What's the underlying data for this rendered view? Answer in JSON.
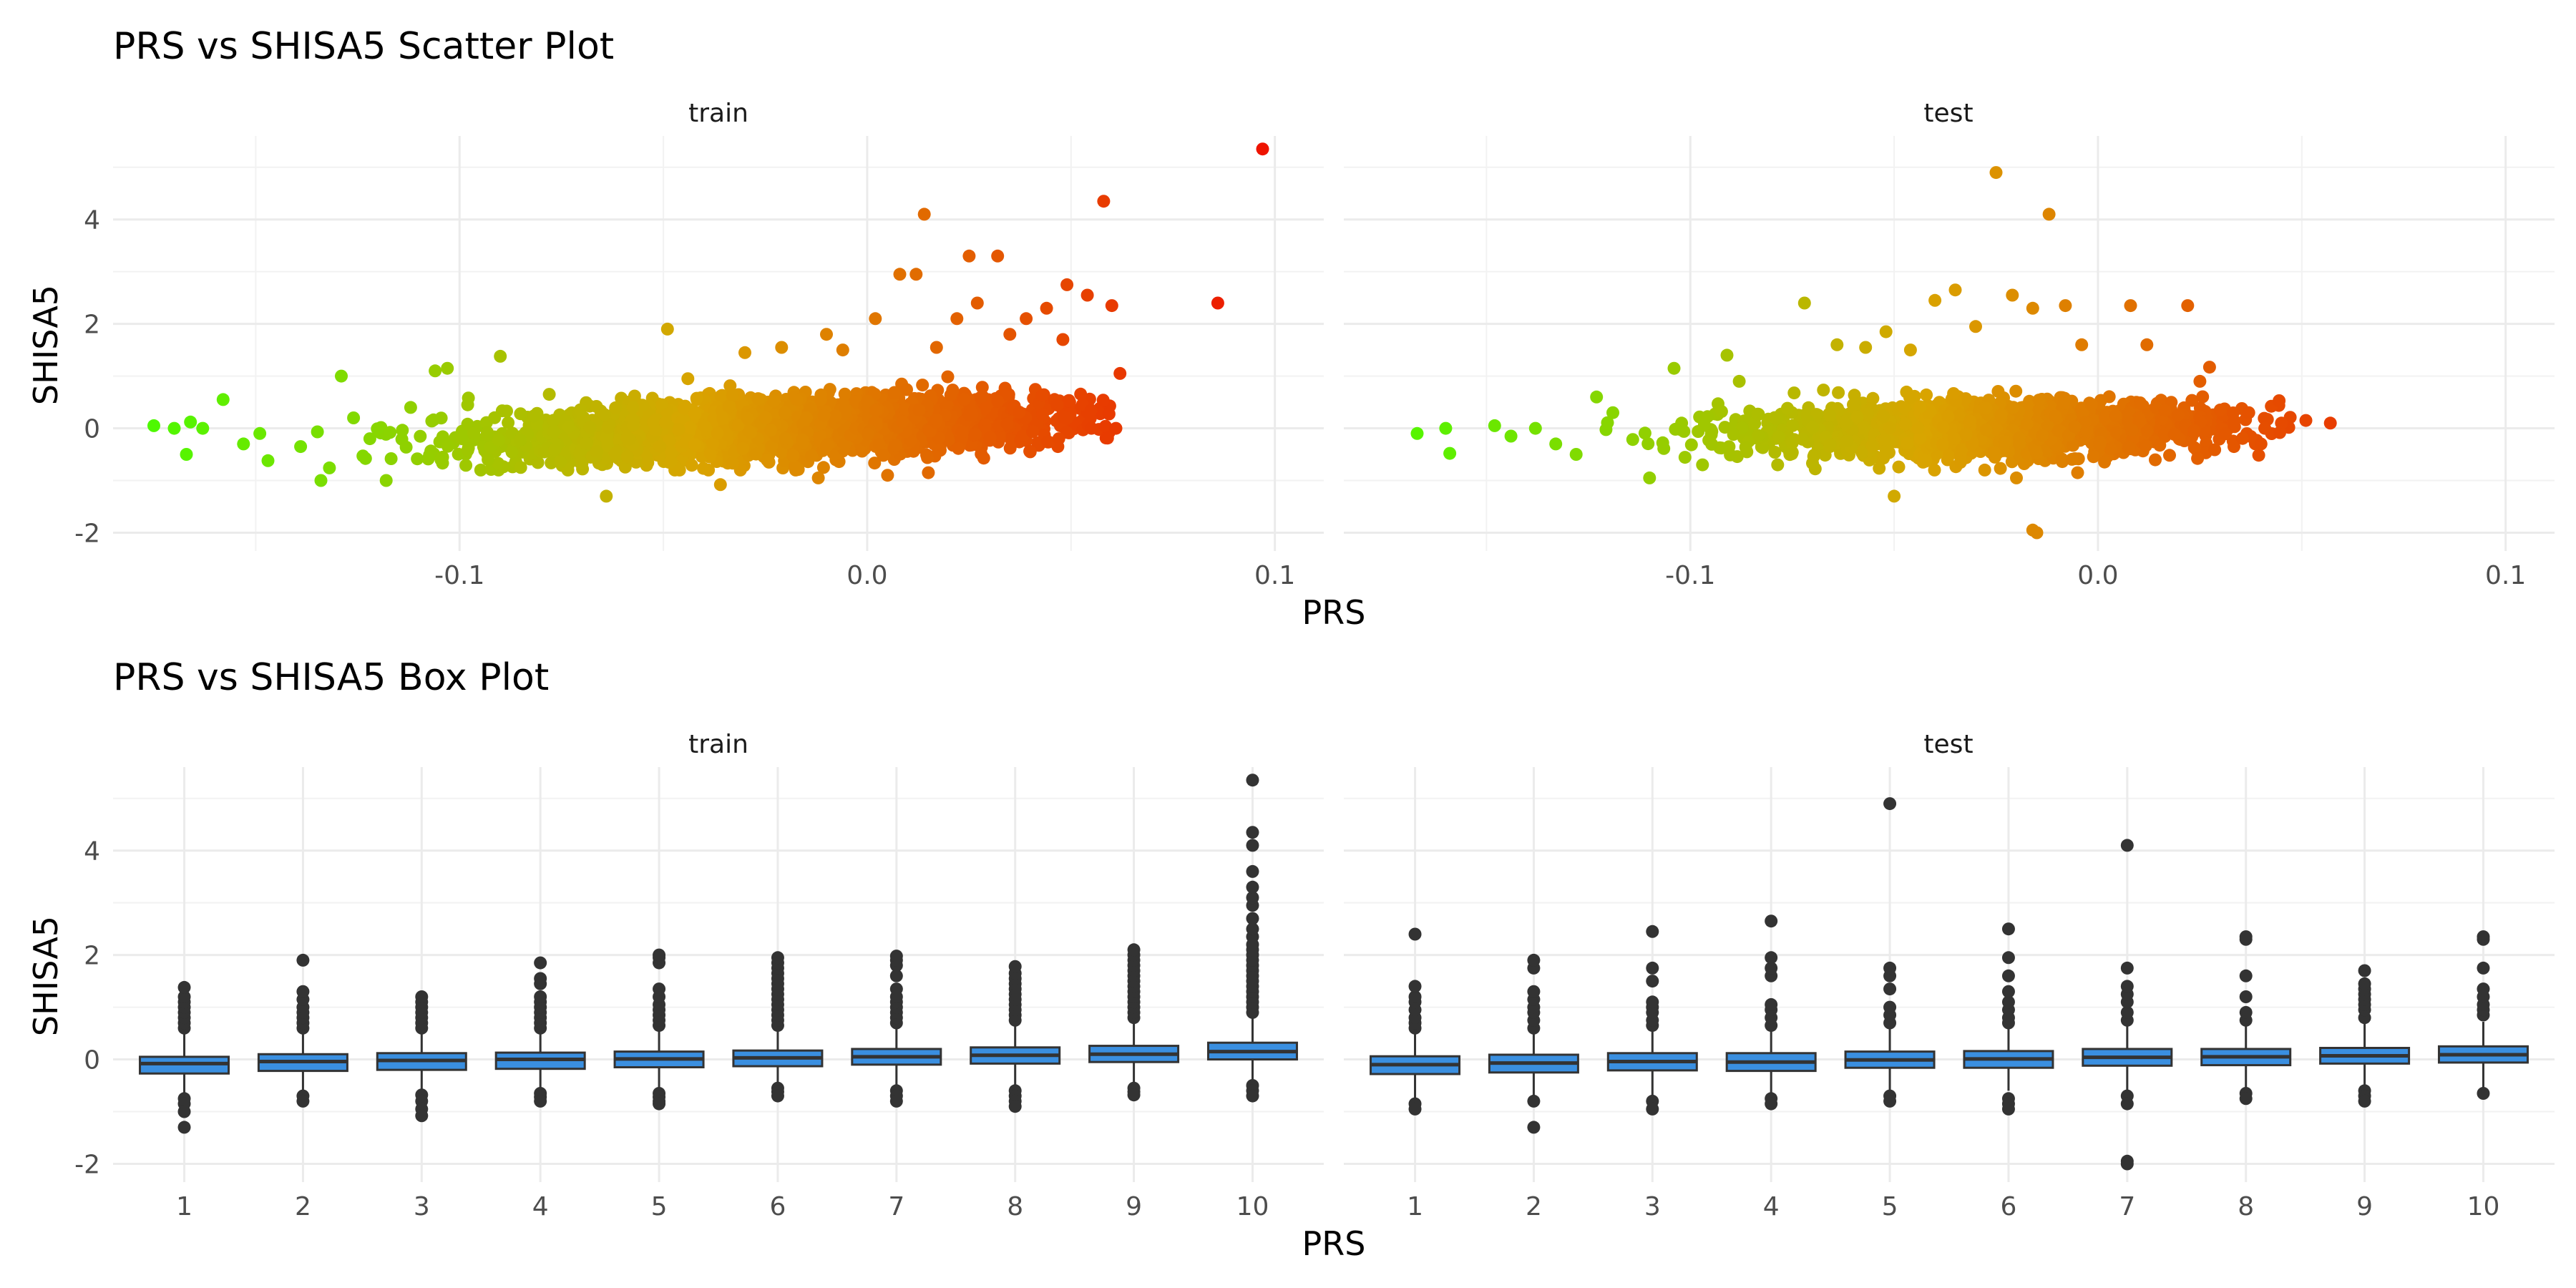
{
  "chart_data": [
    {
      "type": "scatter",
      "title": "PRS vs SHISA5 Scatter Plot",
      "xlabel": "PRS",
      "ylabel": "SHISA5",
      "facets": [
        "train",
        "test"
      ],
      "xlim": [
        -0.185,
        0.112
      ],
      "ylim": [
        -2.35,
        5.6
      ],
      "x_ticks": [
        -0.1,
        0.0,
        0.1
      ],
      "x_tick_labels": [
        "-0.1",
        "0.0",
        "0.1"
      ],
      "y_ticks": [
        -2,
        0,
        2,
        4
      ],
      "y_tick_labels": [
        "-2",
        "0",
        "2",
        "4"
      ],
      "grid": true,
      "legend": "none",
      "color_scale": {
        "low": "#44ff00",
        "mid": "#d9a400",
        "high": "#ee1100",
        "mapped_to": "PRS"
      },
      "series": [
        {
          "facet": "train",
          "points": [
            [
              -0.175,
              0.05
            ],
            [
              -0.17,
              0.0
            ],
            [
              -0.166,
              0.12
            ],
            [
              -0.163,
              0.0
            ],
            [
              -0.167,
              -0.5
            ],
            [
              -0.158,
              0.55
            ],
            [
              -0.153,
              -0.3
            ],
            [
              -0.149,
              -0.1
            ],
            [
              -0.147,
              -0.62
            ],
            [
              -0.139,
              -0.35
            ],
            [
              -0.134,
              -1.0
            ],
            [
              -0.129,
              1.0
            ],
            [
              -0.126,
              0.2
            ],
            [
              -0.122,
              -0.2
            ],
            [
              -0.118,
              -1.0
            ],
            [
              -0.112,
              0.4
            ],
            [
              -0.106,
              1.1
            ],
            [
              -0.103,
              1.15
            ],
            [
              -0.098,
              0.45
            ],
            [
              -0.093,
              -0.6
            ],
            [
              -0.09,
              1.38
            ],
            [
              -0.085,
              -0.75
            ],
            [
              -0.078,
              0.65
            ],
            [
              -0.064,
              -1.3
            ],
            [
              -0.049,
              1.9
            ],
            [
              -0.044,
              0.95
            ],
            [
              -0.036,
              -1.08
            ],
            [
              -0.03,
              1.45
            ],
            [
              -0.021,
              1.55
            ],
            [
              -0.01,
              1.8
            ],
            [
              0.002,
              2.1
            ],
            [
              -0.006,
              1.5
            ],
            [
              0.008,
              2.95
            ],
            [
              0.012,
              2.95
            ],
            [
              0.014,
              4.1
            ],
            [
              0.017,
              1.55
            ],
            [
              0.022,
              2.1
            ],
            [
              0.025,
              3.3
            ],
            [
              0.027,
              2.4
            ],
            [
              0.032,
              3.3
            ],
            [
              0.035,
              1.8
            ],
            [
              0.039,
              2.1
            ],
            [
              0.044,
              2.3
            ],
            [
              0.048,
              1.7
            ],
            [
              0.049,
              2.75
            ],
            [
              0.054,
              2.55
            ],
            [
              0.058,
              4.35
            ],
            [
              0.06,
              2.35
            ],
            [
              0.062,
              1.05
            ],
            [
              0.055,
              0.0
            ],
            [
              0.061,
              0.0
            ],
            [
              0.047,
              -0.2
            ],
            [
              0.04,
              -0.45
            ],
            [
              0.086,
              2.4
            ],
            [
              0.097,
              5.35
            ],
            [
              0.015,
              -0.85
            ],
            [
              0.005,
              -0.9
            ],
            [
              -0.012,
              -0.95
            ]
          ]
        },
        {
          "facet": "test",
          "points": [
            [
              -0.167,
              -0.1
            ],
            [
              -0.16,
              0.0
            ],
            [
              -0.159,
              -0.48
            ],
            [
              -0.148,
              0.05
            ],
            [
              -0.144,
              -0.15
            ],
            [
              -0.138,
              0.0
            ],
            [
              -0.133,
              -0.3
            ],
            [
              -0.128,
              -0.5
            ],
            [
              -0.123,
              0.6
            ],
            [
              -0.119,
              0.3
            ],
            [
              -0.11,
              -0.95
            ],
            [
              -0.104,
              1.15
            ],
            [
              -0.097,
              -0.7
            ],
            [
              -0.091,
              1.4
            ],
            [
              -0.088,
              0.9
            ],
            [
              -0.072,
              2.4
            ],
            [
              -0.064,
              1.6
            ],
            [
              -0.057,
              1.55
            ],
            [
              -0.052,
              1.85
            ],
            [
              -0.05,
              -1.3
            ],
            [
              -0.046,
              1.5
            ],
            [
              -0.04,
              2.45
            ],
            [
              -0.035,
              2.65
            ],
            [
              -0.03,
              1.95
            ],
            [
              -0.025,
              4.9
            ],
            [
              -0.021,
              2.55
            ],
            [
              -0.016,
              2.3
            ],
            [
              -0.012,
              4.1
            ],
            [
              -0.008,
              2.35
            ],
            [
              -0.004,
              1.6
            ],
            [
              0.008,
              2.35
            ],
            [
              0.012,
              1.6
            ],
            [
              0.022,
              2.35
            ],
            [
              0.025,
              0.9
            ],
            [
              -0.016,
              -1.95
            ],
            [
              -0.015,
              -2.0
            ],
            [
              0.03,
              0.35
            ],
            [
              0.037,
              0.3
            ],
            [
              0.045,
              0.1
            ],
            [
              0.051,
              0.15
            ],
            [
              0.057,
              0.1
            ],
            [
              0.04,
              -0.3
            ],
            [
              -0.005,
              -0.85
            ],
            [
              -0.02,
              -0.95
            ]
          ]
        }
      ]
    },
    {
      "type": "box",
      "title": "PRS vs SHISA5 Box Plot",
      "xlabel": "PRS",
      "ylabel": "SHISA5",
      "facets": [
        "train",
        "test"
      ],
      "categories": [
        "1",
        "2",
        "3",
        "4",
        "5",
        "6",
        "7",
        "8",
        "9",
        "10"
      ],
      "ylim": [
        -2.35,
        5.6
      ],
      "y_ticks": [
        -2,
        0,
        2,
        4
      ],
      "y_tick_labels": [
        "-2",
        "0",
        "2",
        "4"
      ],
      "grid": true,
      "box_color": "#3a8fe0",
      "series": [
        {
          "facet": "train",
          "boxes": [
            {
              "q1": -0.27,
              "median": -0.08,
              "q3": 0.05,
              "low": -0.72,
              "high": 0.55,
              "outliers": [
                0.6,
                0.7,
                0.8,
                0.9,
                1.0,
                1.1,
                1.2,
                1.38,
                -0.75,
                -0.85,
                -1.0,
                -1.3
              ]
            },
            {
              "q1": -0.22,
              "median": -0.04,
              "q3": 0.1,
              "low": -0.68,
              "high": 0.55,
              "outliers": [
                0.6,
                0.7,
                0.8,
                0.9,
                1.0,
                1.15,
                1.3,
                1.9,
                -0.7,
                -0.8
              ]
            },
            {
              "q1": -0.2,
              "median": -0.02,
              "q3": 0.12,
              "low": -0.62,
              "high": 0.55,
              "outliers": [
                0.6,
                0.7,
                0.8,
                0.9,
                1.0,
                1.1,
                1.2,
                -0.68,
                -0.8,
                -0.95,
                -1.08
              ]
            },
            {
              "q1": -0.18,
              "median": 0.0,
              "q3": 0.13,
              "low": -0.62,
              "high": 0.55,
              "outliers": [
                0.6,
                0.7,
                0.8,
                0.9,
                1.0,
                1.1,
                1.2,
                1.45,
                1.55,
                1.85,
                -0.65,
                -0.72,
                -0.8
              ]
            },
            {
              "q1": -0.15,
              "median": 0.01,
              "q3": 0.15,
              "low": -0.6,
              "high": 0.58,
              "outliers": [
                0.65,
                0.75,
                0.85,
                0.95,
                1.05,
                1.2,
                1.35,
                1.85,
                1.95,
                2.0,
                -0.65,
                -0.72,
                -0.8,
                -0.85
              ]
            },
            {
              "q1": -0.13,
              "median": 0.03,
              "q3": 0.17,
              "low": -0.55,
              "high": 0.6,
              "outliers": [
                0.65,
                0.75,
                0.85,
                0.95,
                1.05,
                1.15,
                1.25,
                1.35,
                1.45,
                1.55,
                1.65,
                1.75,
                1.85,
                1.95,
                -0.55,
                -0.62,
                -0.7
              ]
            },
            {
              "q1": -0.1,
              "median": 0.05,
              "q3": 0.2,
              "low": -0.55,
              "high": 0.65,
              "outliers": [
                0.7,
                0.8,
                0.9,
                1.0,
                1.1,
                1.2,
                1.35,
                1.6,
                1.8,
                1.9,
                1.98,
                -0.6,
                -0.7,
                -0.8
              ]
            },
            {
              "q1": -0.08,
              "median": 0.08,
              "q3": 0.23,
              "low": -0.55,
              "high": 0.68,
              "outliers": [
                0.75,
                0.85,
                0.95,
                1.05,
                1.15,
                1.25,
                1.35,
                1.45,
                1.55,
                1.65,
                1.78,
                -0.6,
                -0.7,
                -0.8,
                -0.9
              ]
            },
            {
              "q1": -0.05,
              "median": 0.1,
              "q3": 0.26,
              "low": -0.5,
              "high": 0.72,
              "outliers": [
                0.8,
                0.9,
                1.0,
                1.1,
                1.2,
                1.3,
                1.4,
                1.5,
                1.6,
                1.7,
                1.8,
                1.9,
                2.0,
                2.1,
                -0.55,
                -0.62,
                -0.68
              ]
            },
            {
              "q1": 0.0,
              "median": 0.15,
              "q3": 0.32,
              "low": -0.45,
              "high": 0.8,
              "outliers": [
                0.9,
                1.0,
                1.1,
                1.2,
                1.3,
                1.4,
                1.5,
                1.6,
                1.7,
                1.8,
                1.9,
                2.0,
                2.1,
                2.2,
                2.35,
                2.5,
                2.7,
                2.95,
                3.1,
                3.3,
                3.6,
                4.1,
                4.35,
                5.35,
                -0.5,
                -0.6,
                -0.7
              ]
            }
          ]
        },
        {
          "facet": "test",
          "boxes": [
            {
              "q1": -0.28,
              "median": -0.1,
              "q3": 0.06,
              "low": -0.75,
              "high": 0.55,
              "outliers": [
                0.6,
                0.7,
                0.8,
                0.95,
                1.1,
                1.2,
                1.4,
                2.4,
                -0.85,
                -0.95
              ]
            },
            {
              "q1": -0.25,
              "median": -0.07,
              "q3": 0.09,
              "low": -0.72,
              "high": 0.55,
              "outliers": [
                0.6,
                0.75,
                0.9,
                1.0,
                1.15,
                1.3,
                1.75,
                1.9,
                -0.8,
                -1.3
              ]
            },
            {
              "q1": -0.21,
              "median": -0.04,
              "q3": 0.12,
              "low": -0.68,
              "high": 0.58,
              "outliers": [
                0.65,
                0.75,
                0.9,
                1.0,
                1.1,
                1.5,
                1.75,
                2.45,
                -0.8,
                -0.95
              ]
            },
            {
              "q1": -0.22,
              "median": -0.05,
              "q3": 0.12,
              "low": -0.68,
              "high": 0.58,
              "outliers": [
                0.65,
                0.8,
                0.95,
                1.05,
                1.6,
                1.75,
                1.95,
                2.65,
                -0.75,
                -0.85
              ]
            },
            {
              "q1": -0.16,
              "median": -0.01,
              "q3": 0.15,
              "low": -0.62,
              "high": 0.6,
              "outliers": [
                0.7,
                0.85,
                1.0,
                1.35,
                1.6,
                1.75,
                4.9,
                -0.7,
                -0.8
              ]
            },
            {
              "q1": -0.16,
              "median": 0.01,
              "q3": 0.16,
              "low": -0.6,
              "high": 0.62,
              "outliers": [
                0.7,
                0.8,
                0.95,
                1.1,
                1.3,
                1.6,
                1.95,
                2.5,
                -0.75,
                -0.85,
                -0.95
              ]
            },
            {
              "q1": -0.12,
              "median": 0.04,
              "q3": 0.2,
              "low": -0.6,
              "high": 0.65,
              "outliers": [
                0.75,
                0.9,
                1.1,
                1.25,
                1.4,
                1.75,
                4.1,
                -0.7,
                -0.85,
                -1.95,
                -2.0
              ]
            },
            {
              "q1": -0.11,
              "median": 0.05,
              "q3": 0.2,
              "low": -0.58,
              "high": 0.65,
              "outliers": [
                0.75,
                0.9,
                1.2,
                1.6,
                2.3,
                2.35,
                -0.65,
                -0.75
              ]
            },
            {
              "q1": -0.08,
              "median": 0.07,
              "q3": 0.22,
              "low": -0.55,
              "high": 0.68,
              "outliers": [
                0.8,
                0.95,
                1.05,
                1.15,
                1.25,
                1.35,
                1.45,
                1.7,
                -0.6,
                -0.7,
                -0.8
              ]
            },
            {
              "q1": -0.06,
              "median": 0.09,
              "q3": 0.25,
              "low": -0.55,
              "high": 0.72,
              "outliers": [
                0.85,
                0.95,
                1.05,
                1.2,
                1.35,
                1.75,
                2.3,
                2.35,
                -0.65
              ]
            }
          ]
        }
      ]
    }
  ]
}
